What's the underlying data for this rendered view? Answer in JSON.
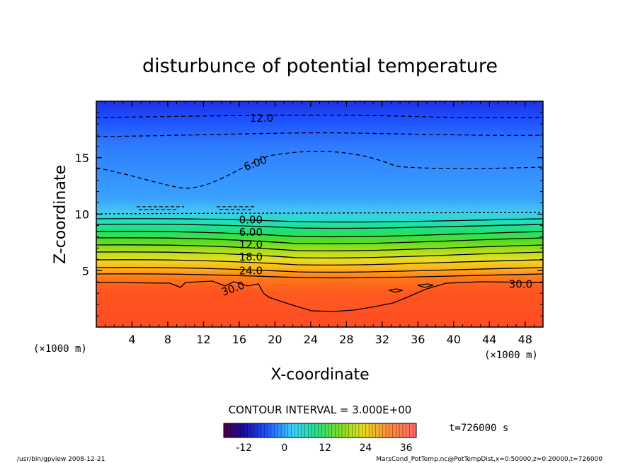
{
  "chart_data": {
    "type": "heatmap",
    "title": "disturbunce of potential temperature",
    "xlabel": "X-coordinate",
    "ylabel": "Z-coordinate",
    "x_unit_left": "(×1000 m)",
    "x_unit_right": "(×1000 m)",
    "xlim": [
      0,
      50
    ],
    "ylim": [
      0,
      20
    ],
    "x_ticks": [
      4,
      8,
      12,
      16,
      20,
      24,
      28,
      32,
      36,
      40,
      44,
      48
    ],
    "y_ticks": [
      5,
      10,
      15
    ],
    "grid": false,
    "contour_interval_label": "CONTOUR INTERVAL = 3.000E+00",
    "time_label": "t=726000 s",
    "colorbar": {
      "min": -18,
      "max": 39,
      "ticks": [
        -12,
        0,
        12,
        24,
        36
      ]
    },
    "contour_labels": [
      {
        "text": "12.0",
        "x": 18.5,
        "z": 18.5
      },
      {
        "text": "6.00",
        "x": 17.8,
        "z": 14.5
      },
      {
        "text": "0.00",
        "x": 17.3,
        "z": 9.5
      },
      {
        "text": "6.00",
        "x": 17.3,
        "z": 8.4
      },
      {
        "text": "12.0",
        "x": 17.3,
        "z": 7.3
      },
      {
        "text": "18.0",
        "x": 17.3,
        "z": 6.2
      },
      {
        "text": "24.0",
        "x": 17.3,
        "z": 5.0
      },
      {
        "text": "30.0",
        "x": 15.3,
        "z": 3.4
      },
      {
        "text": "30.0",
        "x": 47.5,
        "z": 3.8
      }
    ],
    "temperature_profile_at_x": [
      {
        "z": 0,
        "value": 34
      },
      {
        "z": 3,
        "value": 32
      },
      {
        "z": 4,
        "value": 28
      },
      {
        "z": 5,
        "value": 24
      },
      {
        "z": 6,
        "value": 18
      },
      {
        "z": 7,
        "value": 12
      },
      {
        "z": 8,
        "value": 6
      },
      {
        "z": 9,
        "value": 0
      },
      {
        "z": 10,
        "value": -3
      },
      {
        "z": 12,
        "value": -5
      },
      {
        "z": 14,
        "value": -7
      },
      {
        "z": 16,
        "value": -10
      },
      {
        "z": 18,
        "value": -12
      },
      {
        "z": 20,
        "value": -15
      }
    ]
  },
  "footer": {
    "left": "/usr/bin/gpview   2008-12-21",
    "right": "MarsCond_PotTemp.nc@PotTempDist,x=0:50000,z=0:20000,t=726000"
  }
}
